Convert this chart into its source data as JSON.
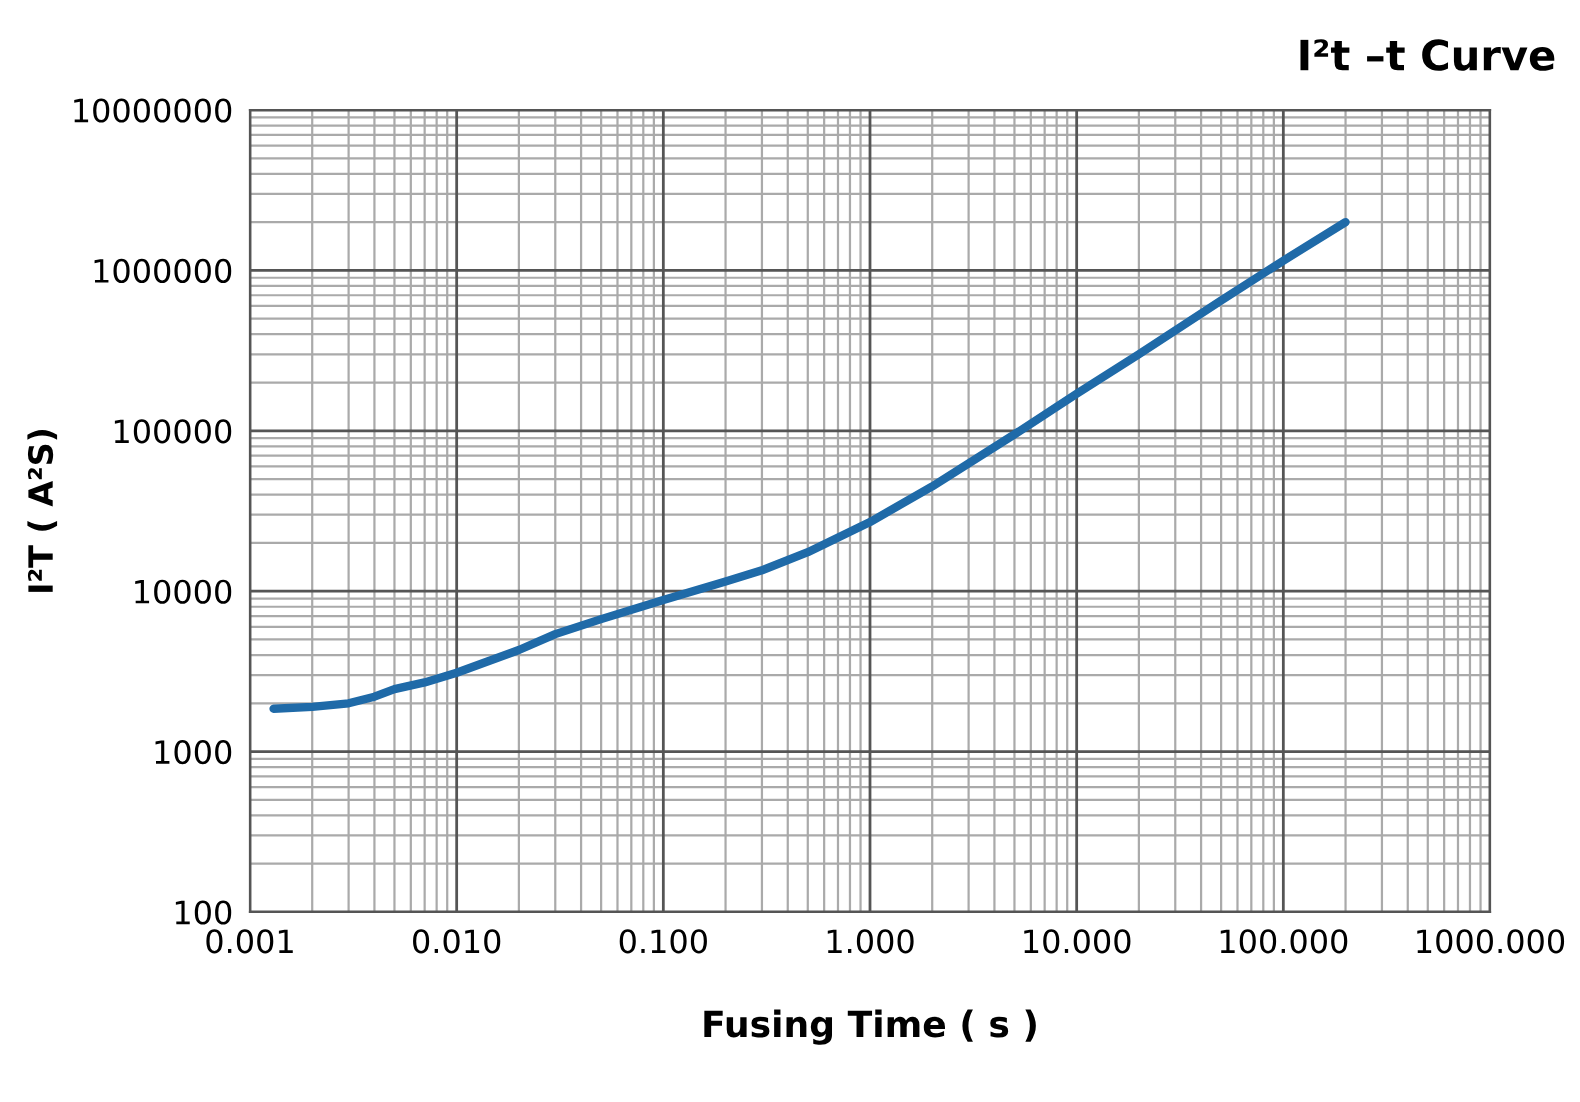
{
  "chart_data": {
    "type": "line",
    "title": "I²t –t Curve",
    "xlabel": "Fusing Time ( s )",
    "ylabel": "I²T ( A²S)",
    "log": "xy",
    "grid": true,
    "marker": "none",
    "line_style": "solid",
    "xlim": [
      0.001,
      1000
    ],
    "ylim": [
      100,
      10000000
    ],
    "xticks": [
      {
        "value": 0.001,
        "label": "0.001"
      },
      {
        "value": 0.01,
        "label": "0.010"
      },
      {
        "value": 0.1,
        "label": "0.100"
      },
      {
        "value": 1,
        "label": "1.000"
      },
      {
        "value": 10,
        "label": "10.000"
      },
      {
        "value": 100,
        "label": "100.000"
      },
      {
        "value": 1000,
        "label": "1000.000"
      }
    ],
    "yticks": [
      100,
      1000,
      10000,
      100000,
      1000000,
      10000000
    ],
    "series": [
      {
        "color": "#1f6aa8",
        "x": [
          0.0013,
          0.002,
          0.003,
          0.004,
          0.005,
          0.007,
          0.01,
          0.02,
          0.03,
          0.05,
          0.1,
          0.2,
          0.3,
          0.5,
          1,
          2,
          5,
          10,
          20,
          50,
          100,
          200
        ],
        "values": [
          1850,
          1900,
          2000,
          2200,
          2450,
          2700,
          3100,
          4300,
          5400,
          6700,
          8800,
          11500,
          13500,
          17500,
          27000,
          45000,
          95000,
          170000,
          300000,
          650000,
          1150000,
          2000000
        ]
      }
    ]
  }
}
